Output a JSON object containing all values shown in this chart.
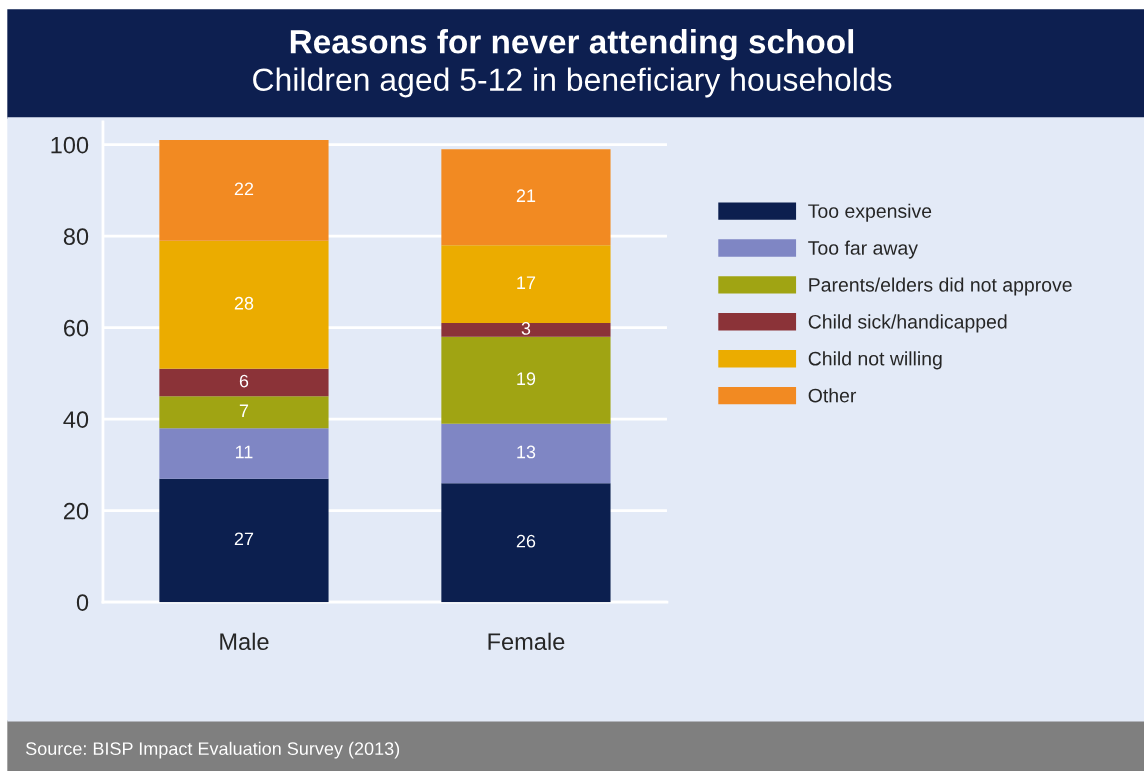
{
  "chart_data": {
    "type": "bar",
    "stacked": true,
    "title": "Reasons for never attending school",
    "subtitle": "Children aged 5-12 in beneficiary households",
    "categories": [
      "Male",
      "Female"
    ],
    "series": [
      {
        "name": "Too expensive",
        "color": "#0c1f4f",
        "values": [
          27,
          26
        ]
      },
      {
        "name": "Too far away",
        "color": "#7f86c4",
        "values": [
          11,
          13
        ]
      },
      {
        "name": "Parents/elders did not approve",
        "color": "#a0a413",
        "values": [
          7,
          19
        ]
      },
      {
        "name": "Child sick/handicapped",
        "color": "#8b3338",
        "values": [
          6,
          3
        ]
      },
      {
        "name": "Child not willing",
        "color": "#ebac00",
        "values": [
          28,
          17
        ]
      },
      {
        "name": "Other",
        "color": "#f28a22",
        "values": [
          22,
          21
        ]
      }
    ],
    "ylim": [
      0,
      105
    ],
    "yticks": [
      0,
      20,
      40,
      60,
      80,
      100
    ],
    "grid": "y",
    "legend": "right",
    "data_labels": true,
    "annotations": [
      "Source: BISP Impact Evaluation Survey (2013)"
    ]
  }
}
